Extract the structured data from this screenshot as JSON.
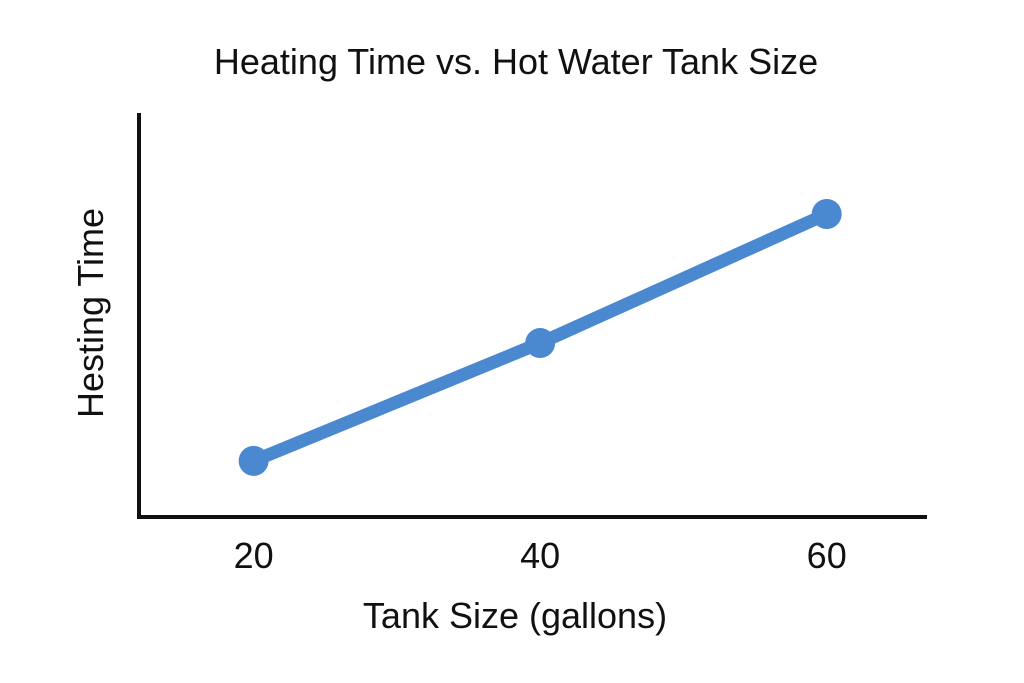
{
  "chart_data": {
    "type": "line",
    "title": "Heating Time vs. Hot Water Tank Size",
    "xlabel": "Tank Size (gallons)",
    "ylabel": "Hesting Time",
    "x": [
      20,
      40,
      60
    ],
    "x_tick_labels": [
      "20",
      "40",
      "60"
    ],
    "series": [
      {
        "values": [
          1.0,
          2.05,
          3.2
        ]
      }
    ],
    "xlim": [
      12,
      67
    ],
    "ylim": [
      0.5,
      4.1
    ],
    "y_ticks_visible": false,
    "grid": false,
    "legend": "none",
    "line_color": "#4a88d0",
    "axis_color": "#111111"
  }
}
